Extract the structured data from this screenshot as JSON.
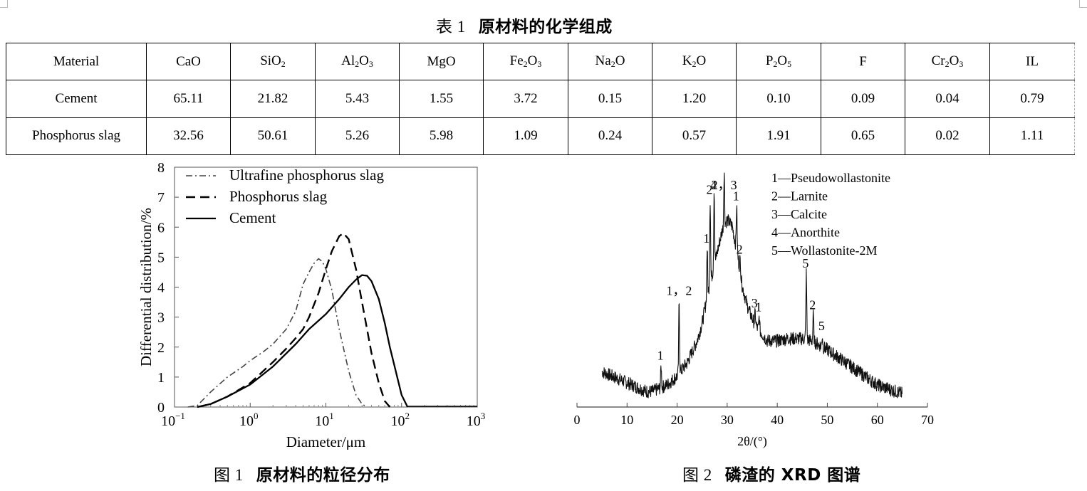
{
  "table": {
    "caption_num": "表 1",
    "caption_text": "原材料的化学组成",
    "header": [
      "Material",
      "CaO",
      "SiO2",
      "Al2O3",
      "MgO",
      "Fe2O3",
      "Na2O",
      "K2O",
      "P2O5",
      "F",
      "Cr2O3",
      "IL"
    ],
    "rows": [
      [
        "Cement",
        "65.11",
        "21.82",
        "5.43",
        "1.55",
        "3.72",
        "0.15",
        "1.20",
        "0.10",
        "0.09",
        "0.04",
        "0.79"
      ],
      [
        "Phosphorus slag",
        "32.56",
        "50.61",
        "5.26",
        "5.98",
        "1.09",
        "0.24",
        "0.57",
        "1.91",
        "0.65",
        "0.02",
        "1.11"
      ]
    ]
  },
  "figure1": {
    "caption_num": "图 1",
    "caption_text": "原材料的粒径分布"
  },
  "figure2": {
    "caption_num": "图 2",
    "caption_text": "磷渣的 XRD 图谱"
  },
  "chart_data": [
    {
      "type": "line",
      "title": "",
      "xlabel": "Diameter/μm",
      "ylabel": "Differential distribution/%",
      "xscale": "log",
      "xlim": [
        0.1,
        1000
      ],
      "ylim": [
        0,
        8
      ],
      "xticks": [
        0.1,
        1,
        10,
        100,
        1000
      ],
      "xtick_labels": [
        "10",
        "10",
        "10",
        "10",
        "10"
      ],
      "xtick_exponents": [
        "−1",
        "0",
        "1",
        "2",
        "3"
      ],
      "yticks": [
        0,
        1,
        2,
        3,
        4,
        5,
        6,
        7,
        8
      ],
      "ytick_labels": [
        "0",
        "1",
        "2",
        "3",
        "4",
        "5",
        "6",
        "7",
        "8"
      ],
      "legend_position": "top-left",
      "series": [
        {
          "name": "Ultrafine phosphorus slag",
          "style": "dashdot",
          "x": [
            0.15,
            0.2,
            0.3,
            0.5,
            0.8,
            1,
            1.5,
            2,
            3,
            4,
            5,
            6,
            7,
            8,
            9,
            10,
            12,
            15,
            20,
            25,
            30,
            35
          ],
          "y": [
            0,
            0.05,
            0.5,
            1,
            1.35,
            1.55,
            1.85,
            2.1,
            2.6,
            3.2,
            4.1,
            4.5,
            4.8,
            4.95,
            4.85,
            4.6,
            3.9,
            2.6,
            1.2,
            0.4,
            0.1,
            0
          ]
        },
        {
          "name": "Phosphorus slag",
          "style": "dashed",
          "x": [
            0.2,
            0.3,
            0.5,
            1,
            2,
            3,
            4,
            5,
            6,
            8,
            10,
            12,
            15,
            17,
            20,
            25,
            30,
            40,
            50,
            60,
            70
          ],
          "y": [
            0,
            0.1,
            0.35,
            0.8,
            1.5,
            1.95,
            2.3,
            2.6,
            3,
            3.8,
            4.6,
            5.2,
            5.7,
            5.8,
            5.6,
            4.6,
            3.5,
            1.8,
            0.8,
            0.2,
            0
          ]
        },
        {
          "name": "Cement",
          "style": "solid",
          "x": [
            0.2,
            0.3,
            0.5,
            1,
            2,
            4,
            6,
            10,
            15,
            20,
            25,
            30,
            35,
            40,
            50,
            60,
            70,
            80,
            100,
            120
          ],
          "y": [
            0,
            0.1,
            0.35,
            0.75,
            1.35,
            2.1,
            2.6,
            3.1,
            3.6,
            4,
            4.25,
            4.4,
            4.38,
            4.2,
            3.6,
            2.8,
            2,
            1.4,
            0.4,
            0
          ]
        }
      ]
    },
    {
      "type": "line",
      "title": "",
      "xlabel": "2θ/(°)",
      "ylabel": "",
      "xlim": [
        0,
        70
      ],
      "xticks": [
        0,
        10,
        20,
        30,
        40,
        50,
        60,
        70
      ],
      "xtick_labels": [
        "0",
        "10",
        "20",
        "30",
        "40",
        "50",
        "60",
        "70"
      ],
      "legend_position": "top-right",
      "legend": [
        "1—Pseudowollastonite",
        "2—Larnite",
        "3—Calcite",
        "4—Anorthite",
        "5—Wollastonite-2M"
      ],
      "series": [
        {
          "name": "Phosphorus slag XRD",
          "x": [
            5,
            8,
            10,
            12,
            14,
            15,
            16,
            17,
            18,
            19,
            20,
            21,
            22,
            23,
            24,
            25,
            26,
            27,
            28,
            29,
            30,
            31,
            32,
            33,
            34,
            35,
            36,
            37,
            38,
            40,
            42,
            44,
            45,
            47,
            50,
            55,
            60,
            65
          ],
          "y": [
            0.16,
            0.13,
            0.11,
            0.09,
            0.07,
            0.07,
            0.08,
            0.09,
            0.1,
            0.12,
            0.14,
            0.17,
            0.2,
            0.25,
            0.3,
            0.38,
            0.5,
            0.6,
            0.7,
            0.8,
            0.85,
            0.82,
            0.7,
            0.55,
            0.46,
            0.4,
            0.36,
            0.33,
            0.3,
            0.3,
            0.31,
            0.31,
            0.31,
            0.3,
            0.26,
            0.18,
            0.1,
            0.06
          ]
        }
      ],
      "peaks": [
        {
          "x": 16.8,
          "label": "1"
        },
        {
          "x": 20.4,
          "label": "1，2"
        },
        {
          "x": 26.0,
          "label": "1"
        },
        {
          "x": 26.6,
          "label": "2"
        },
        {
          "x": 27.4,
          "label": "4"
        },
        {
          "x": 29.4,
          "label": "2，3"
        },
        {
          "x": 31.9,
          "label": "1"
        },
        {
          "x": 32.6,
          "label": "2"
        },
        {
          "x": 35.6,
          "label": "3"
        },
        {
          "x": 36.4,
          "label": "1"
        },
        {
          "x": 45.8,
          "label": "5"
        },
        {
          "x": 47.2,
          "label": "2"
        },
        {
          "x": 49.0,
          "label": "5"
        }
      ]
    }
  ]
}
